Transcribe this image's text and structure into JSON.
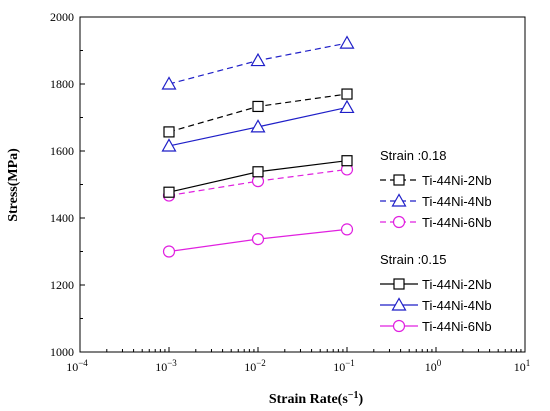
{
  "chart_data": {
    "type": "line",
    "title": "",
    "xlabel": "Strain Rate(s",
    "xlabel_sup": "−1",
    "xlabel_close": ")",
    "ylabel": "Stress(MPa)",
    "xscale": "log",
    "xlim": [
      0.0001,
      10
    ],
    "ylim": [
      1000,
      2000
    ],
    "x_ticks": [
      {
        "value": 0.0001,
        "base": "10",
        "exp": "−4"
      },
      {
        "value": 0.001,
        "base": "10",
        "exp": "−3"
      },
      {
        "value": 0.01,
        "base": "10",
        "exp": "−2"
      },
      {
        "value": 0.1,
        "base": "10",
        "exp": "−1"
      },
      {
        "value": 1,
        "base": "10",
        "exp": "0"
      },
      {
        "value": 10,
        "base": "10",
        "exp": "1"
      }
    ],
    "y_ticks": [
      1000,
      1200,
      1400,
      1600,
      1800,
      2000
    ],
    "grid": false,
    "legend_placement": "right",
    "legend_groups": [
      {
        "title": "Strain :0.18",
        "dashed": true,
        "series": [
          {
            "name": "Ti-44Ni-2Nb",
            "marker": "square",
            "color": "#000000",
            "x": [
              0.001,
              0.01,
              0.1
            ],
            "y": [
              1657,
              1733,
              1770
            ]
          },
          {
            "name": "Ti-44Ni-4Nb",
            "marker": "triangle",
            "color": "#1f1fc8",
            "x": [
              0.001,
              0.01,
              0.1
            ],
            "y": [
              1800,
              1870,
              1922
            ]
          },
          {
            "name": "Ti-44Ni-6Nb",
            "marker": "circle",
            "color": "#e020e0",
            "x": [
              0.001,
              0.01,
              0.1
            ],
            "y": [
              1467,
              1510,
              1545
            ]
          }
        ]
      },
      {
        "title": "Strain :0.15",
        "dashed": false,
        "series": [
          {
            "name": "Ti-44Ni-2Nb",
            "marker": "square",
            "color": "#000000",
            "x": [
              0.001,
              0.01,
              0.1
            ],
            "y": [
              1477,
              1538,
              1571
            ]
          },
          {
            "name": "Ti-44Ni-4Nb",
            "marker": "triangle",
            "color": "#1f1fc8",
            "x": [
              0.001,
              0.01,
              0.1
            ],
            "y": [
              1615,
              1672,
              1730
            ]
          },
          {
            "name": "Ti-44Ni-6Nb",
            "marker": "circle",
            "color": "#e020e0",
            "x": [
              0.001,
              0.01,
              0.1
            ],
            "y": [
              1300,
              1337,
              1366
            ]
          }
        ]
      }
    ]
  }
}
